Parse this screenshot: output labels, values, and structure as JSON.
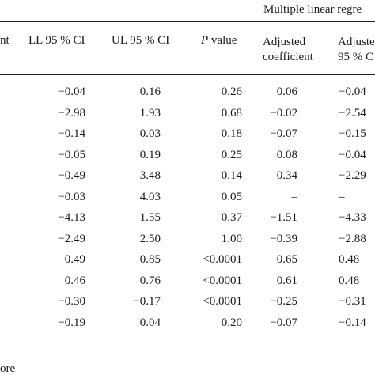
{
  "group_header": "Multiple linear regre",
  "headers": {
    "col0_tail": "nt",
    "ll": "LL 95 % CI",
    "ul": "UL 95 % CI",
    "p_italic": "P",
    "p_rest": " value",
    "adj_line1": "Adjusted",
    "adj_line2": "coefficient",
    "adj95_line1": "Adjuste",
    "adj95_line2": "95 % C"
  },
  "rows": [
    {
      "ll": "−0.04",
      "ul": "0.16",
      "p": "0.26",
      "adj": "0.06",
      "adj95": "−0.04"
    },
    {
      "ll": "−2.98",
      "ul": "1.93",
      "p": "0.68",
      "adj": "−0.02",
      "adj95": "−2.54"
    },
    {
      "ll": "−0.14",
      "ul": "0.03",
      "p": "0.18",
      "adj": "−0.07",
      "adj95": "−0.15"
    },
    {
      "ll": "−0.05",
      "ul": "0.19",
      "p": "0.25",
      "adj": "0.08",
      "adj95": "−0.04"
    },
    {
      "ll": "−0.49",
      "ul": "3.48",
      "p": "0.14",
      "adj": "0.34",
      "adj95": "−2.29"
    },
    {
      "ll": "−0.03",
      "ul": "4.03",
      "p": "0.05",
      "adj": "–",
      "adj95": "–"
    },
    {
      "ll": "−4.13",
      "ul": "1.55",
      "p": "0.37",
      "adj": "−1.51",
      "adj95": "−4.33"
    },
    {
      "ll": "−2.49",
      "ul": "2.50",
      "p": "1.00",
      "adj": "−0.39",
      "adj95": "−2.88"
    },
    {
      "ll": "0.49",
      "ul": "0.85",
      "p": "<0.0001",
      "adj": "0.65",
      "adj95": "0.48"
    },
    {
      "ll": "0.46",
      "ul": "0.76",
      "p": "<0.0001",
      "adj": "0.61",
      "adj95": "0.48"
    },
    {
      "ll": "−0.30",
      "ul": "−0.17",
      "p": "<0.0001",
      "adj": "−0.25",
      "adj95": "−0.31"
    },
    {
      "ll": "−0.19",
      "ul": "0.04",
      "p": "0.20",
      "adj": "−0.07",
      "adj95": "−0.14"
    }
  ],
  "footnote": "ore"
}
